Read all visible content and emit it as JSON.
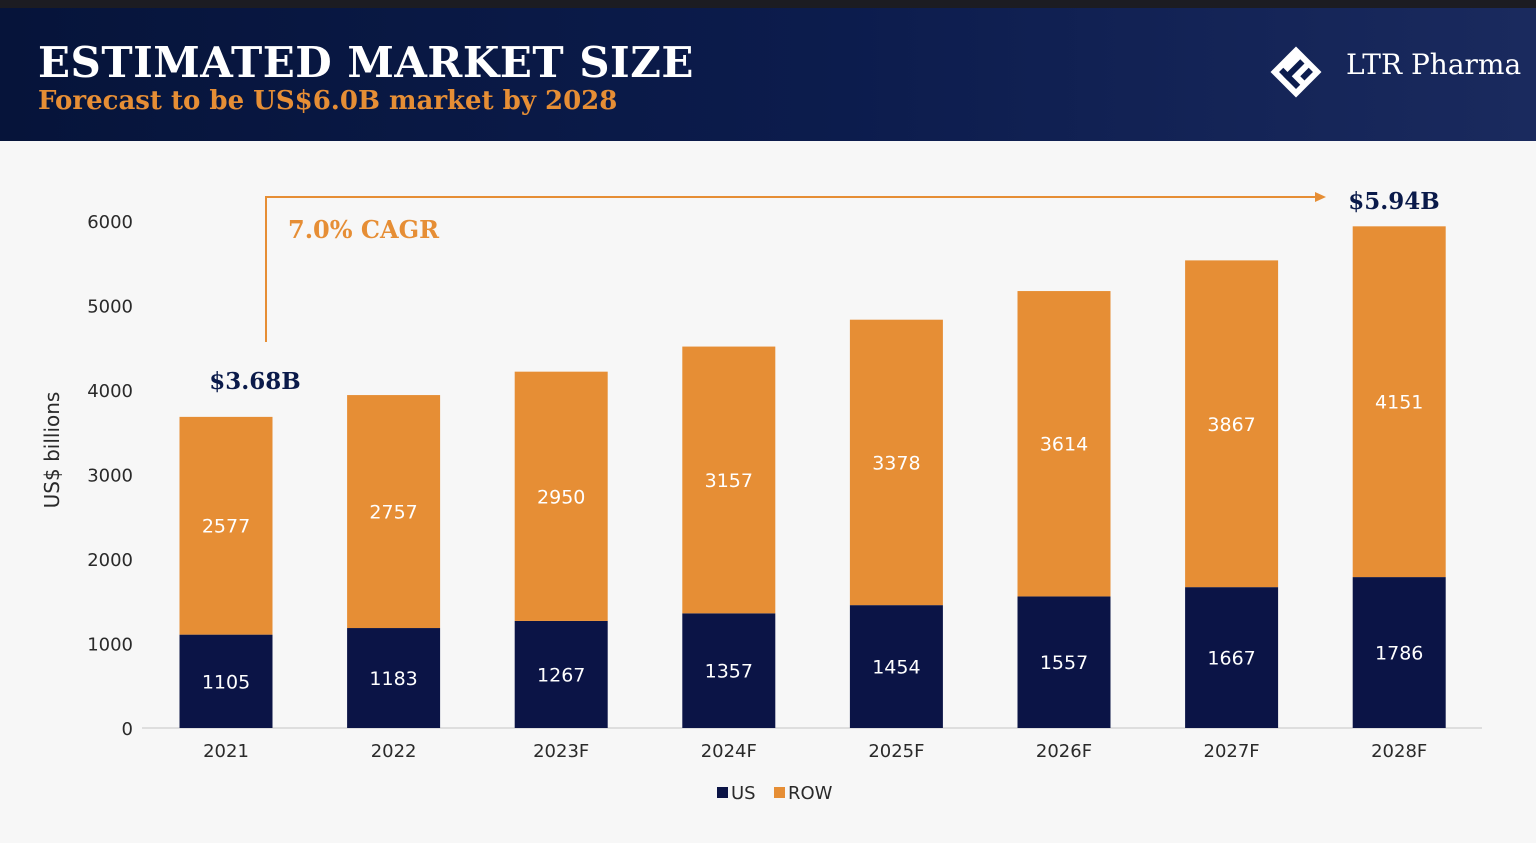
{
  "header": {
    "title": "ESTIMATED MARKET SIZE",
    "subtitle": "Forecast to be US$6.0B market by 2028",
    "brand": "LTR Pharma"
  },
  "colors": {
    "us": "#0b1446",
    "row": "#e68e35",
    "header_bg": "#0a1745",
    "accent": "#e68e35"
  },
  "annotations": {
    "cagr": "7.0% CAGR",
    "start_total": "$3.68B",
    "end_total": "$5.94B"
  },
  "chart_data": {
    "type": "bar",
    "stacked": true,
    "categories": [
      "2021",
      "2022",
      "2023F",
      "2024F",
      "2025F",
      "2026F",
      "2027F",
      "2028F"
    ],
    "series": [
      {
        "name": "US",
        "values": [
          1105,
          1183,
          1267,
          1357,
          1454,
          1557,
          1667,
          1786
        ]
      },
      {
        "name": "ROW",
        "values": [
          2577,
          2757,
          2950,
          3157,
          3378,
          3614,
          3867,
          4151
        ]
      }
    ],
    "ylabel": "US$ billions",
    "xlabel": "",
    "ylim": [
      0,
      6000
    ],
    "yticks": [
      0,
      1000,
      2000,
      3000,
      4000,
      5000,
      6000
    ],
    "grid": false,
    "legend": "bottom-center"
  }
}
